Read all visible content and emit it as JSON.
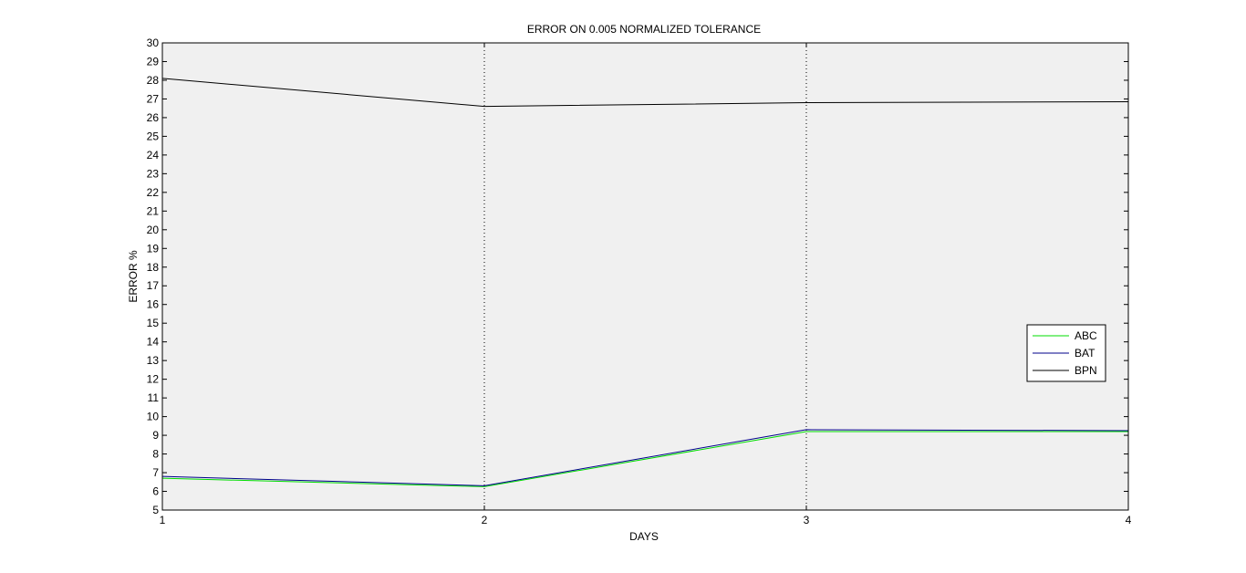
{
  "chart_data": {
    "type": "line",
    "title": "ERROR ON 0.005 NORMALIZED TOLERANCE",
    "xlabel": "DAYS",
    "ylabel": "ERROR %",
    "xlim": [
      1,
      4
    ],
    "ylim": [
      5,
      30
    ],
    "x": [
      1,
      2,
      3,
      4
    ],
    "xticks": [
      1,
      2,
      3,
      4
    ],
    "yticks": [
      5,
      6,
      7,
      8,
      9,
      10,
      11,
      12,
      13,
      14,
      15,
      16,
      17,
      18,
      19,
      20,
      21,
      22,
      23,
      24,
      25,
      26,
      27,
      28,
      29,
      30
    ],
    "grid": "x-dotted",
    "legend_position": "right",
    "series": [
      {
        "name": "ABC",
        "color": "#00dd00",
        "values": [
          6.7,
          6.25,
          9.2,
          9.2
        ]
      },
      {
        "name": "BAT",
        "color": "#00008b",
        "values": [
          6.8,
          6.3,
          9.3,
          9.25
        ]
      },
      {
        "name": "BPN",
        "color": "#000000",
        "values": [
          28.1,
          26.6,
          26.8,
          26.85
        ]
      }
    ]
  }
}
